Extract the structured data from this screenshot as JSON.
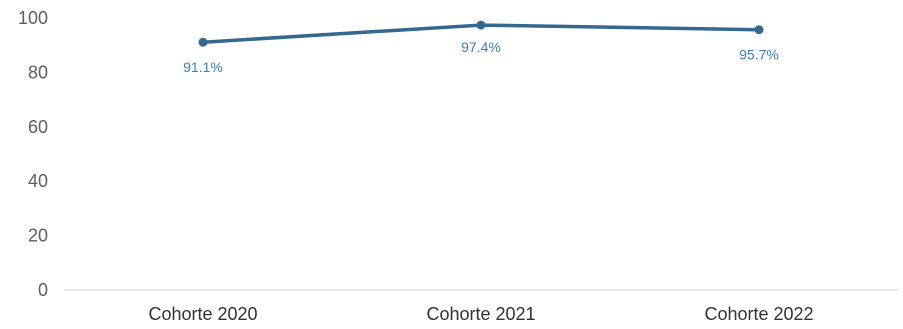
{
  "chart_data": {
    "type": "line",
    "title": "",
    "xlabel": "",
    "ylabel": "",
    "categories": [
      "Cohorte 2020",
      "Cohorte 2021",
      "Cohorte 2022"
    ],
    "series": [
      {
        "values": [
          91.1,
          97.4,
          95.7
        ],
        "labels": [
          "91.1%",
          "97.4%",
          "95.7%"
        ],
        "color": "#34688f"
      }
    ],
    "ylim": [
      0,
      100
    ],
    "yticks": [
      0,
      20,
      40,
      60,
      80,
      100
    ],
    "grid": false,
    "legend": "none",
    "colors": {
      "line": "#34688f",
      "data_label": "#3b7fc3",
      "axis": "#cccccc",
      "y_tick_text": "#5f5f5f",
      "x_tick_text": "#333333"
    }
  }
}
